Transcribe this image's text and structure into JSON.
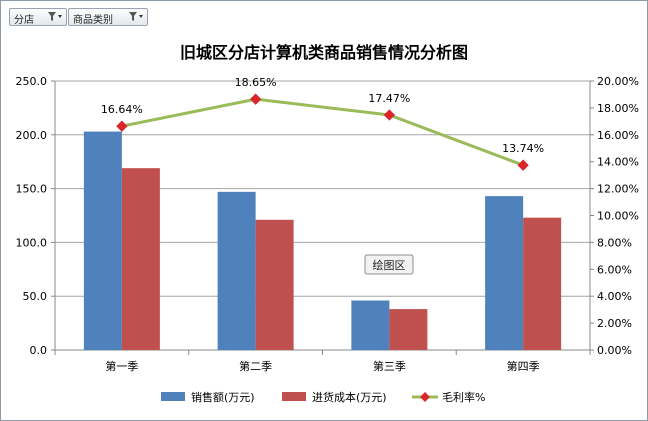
{
  "filters": [
    {
      "label": "分店",
      "icon": "filter-icon"
    },
    {
      "label": "商品类别",
      "icon": "filter-icon"
    }
  ],
  "plot_area_tooltip": "绘图区",
  "chart_data": {
    "type": "bar",
    "title": "旧城区分店计算机类商品销售情况分析图",
    "categories": [
      "第一季",
      "第二季",
      "第三季",
      "第四季"
    ],
    "series": [
      {
        "name": "销售额(万元)",
        "type": "bar",
        "axis": "left",
        "color": "#4f81bd",
        "values": [
          203,
          147,
          46,
          143
        ]
      },
      {
        "name": "进货成本(万元)",
        "type": "bar",
        "axis": "left",
        "color": "#c0504d",
        "values": [
          169,
          121,
          38,
          123
        ]
      },
      {
        "name": "毛利率%",
        "type": "line",
        "axis": "right",
        "color": "#9bbb59",
        "marker_color": "#d9262b",
        "values": [
          0.1664,
          0.1865,
          0.1747,
          0.1374
        ],
        "labels": [
          "16.64%",
          "18.65%",
          "17.47%",
          "13.74%"
        ]
      }
    ],
    "y_left": {
      "min": 0,
      "max": 250,
      "ticks": [
        "0.0",
        "50.0",
        "100.0",
        "150.0",
        "200.0",
        "250.0"
      ]
    },
    "y_right": {
      "min": 0,
      "max": 0.2,
      "ticks": [
        "0.00%",
        "2.00%",
        "4.00%",
        "6.00%",
        "8.00%",
        "10.00%",
        "12.00%",
        "14.00%",
        "16.00%",
        "18.00%",
        "20.00%"
      ]
    },
    "grid": true,
    "legend": "bottom"
  }
}
